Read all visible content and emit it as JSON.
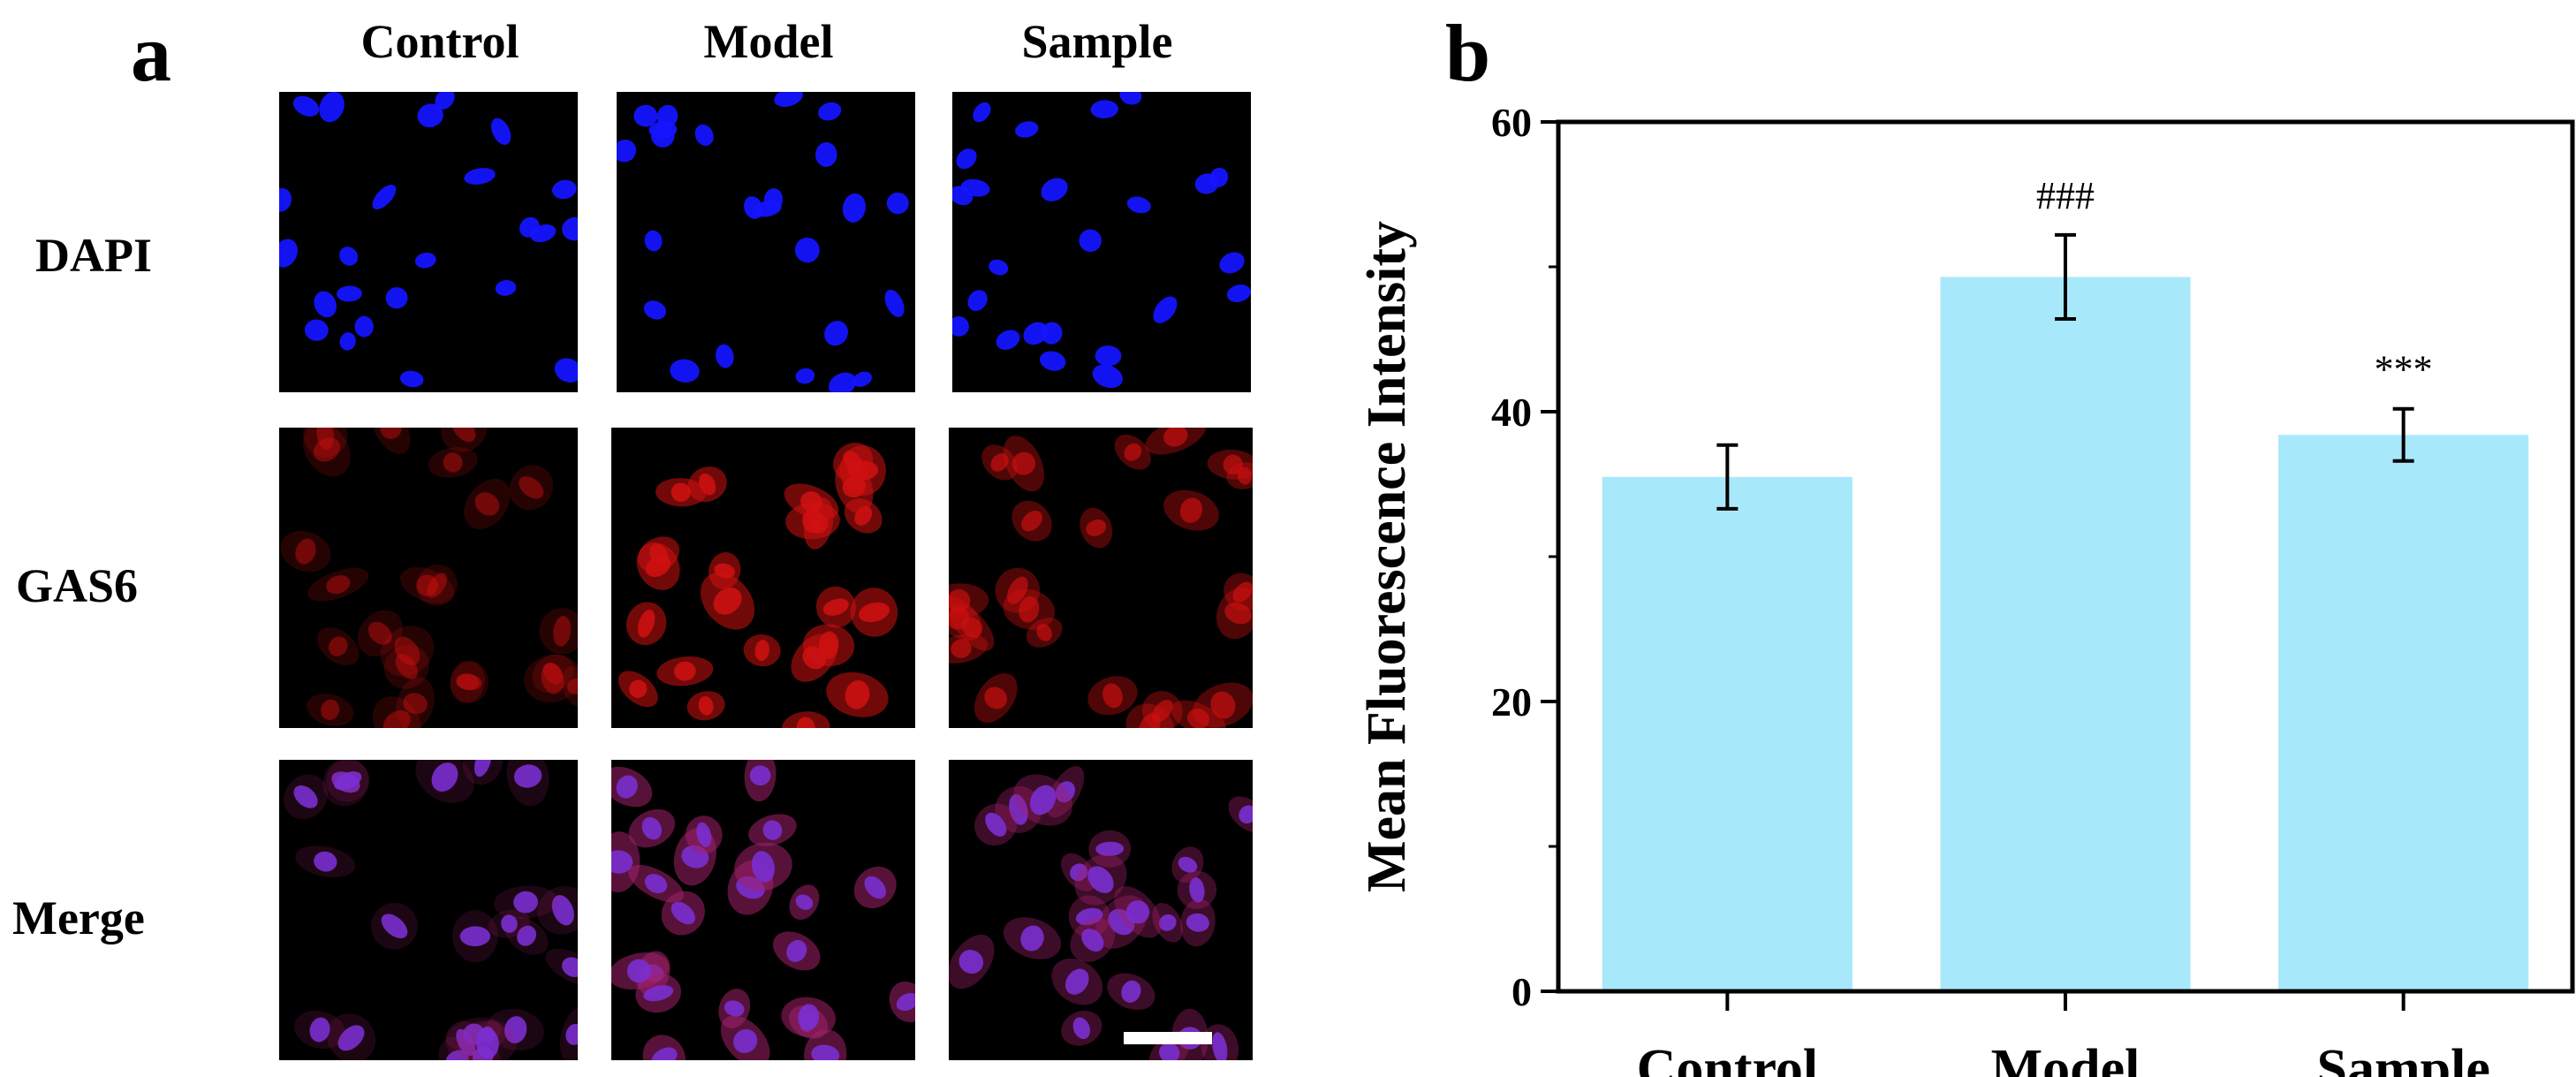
{
  "panel_a": {
    "letter": "a",
    "columns": [
      "Control",
      "Model",
      "Sample"
    ],
    "rows": [
      "DAPI",
      "GAS6",
      "Merge"
    ],
    "micrographs": [
      {
        "row": "DAPI",
        "col": "Control",
        "stain": "dapi"
      },
      {
        "row": "DAPI",
        "col": "Model",
        "stain": "dapi"
      },
      {
        "row": "DAPI",
        "col": "Sample",
        "stain": "dapi"
      },
      {
        "row": "GAS6",
        "col": "Control",
        "stain": "gas6-weak"
      },
      {
        "row": "GAS6",
        "col": "Model",
        "stain": "gas6-strong"
      },
      {
        "row": "GAS6",
        "col": "Sample",
        "stain": "gas6-mid"
      },
      {
        "row": "Merge",
        "col": "Control",
        "stain": "merge-weak"
      },
      {
        "row": "Merge",
        "col": "Model",
        "stain": "merge-strong"
      },
      {
        "row": "Merge",
        "col": "Sample",
        "stain": "merge-mid"
      }
    ],
    "colors": {
      "dapi": "#1414ff",
      "gas6": "#d01010",
      "merge": "#7a2fd0"
    }
  },
  "chart_data": {
    "type": "bar",
    "panel_letter": "b",
    "categories": [
      "Control",
      "Model",
      "Sample"
    ],
    "values": [
      35.5,
      49.3,
      38.4
    ],
    "errors": [
      2.2,
      2.9,
      1.8
    ],
    "annotations": [
      "",
      "###",
      "***"
    ],
    "title": "",
    "xlabel": "",
    "ylabel": "Mean Fluorescence Intensity",
    "ylim": [
      0,
      60
    ],
    "yticks": [
      0,
      20,
      40,
      60
    ],
    "bar_color": "#a8e8fb",
    "grid": false,
    "legend": "none"
  }
}
